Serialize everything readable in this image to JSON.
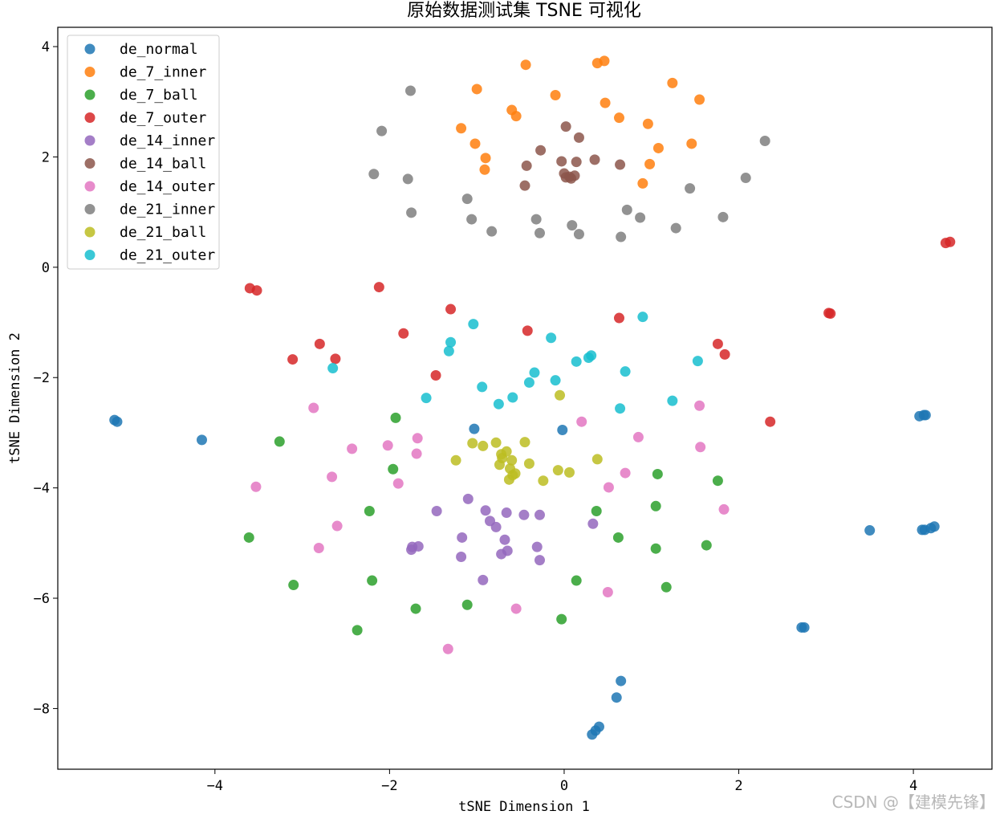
{
  "chart_data": {
    "type": "scatter",
    "title": "原始数据测试集 TSNE 可视化",
    "xlabel": "tSNE Dimension 1",
    "ylabel": "tSNE Dimension 2",
    "xlim": [
      -5.8,
      4.9
    ],
    "ylim": [
      -9.1,
      4.35
    ],
    "xticks": [
      -4,
      -2,
      0,
      2,
      4
    ],
    "yticks": [
      4,
      2,
      0,
      -2,
      -4,
      -6,
      -8
    ],
    "xtick_labels": [
      "−4",
      "−2",
      "0",
      "2",
      "4"
    ],
    "ytick_labels": [
      "4",
      "2",
      "0",
      "−2",
      "−4",
      "−6",
      "−8"
    ],
    "grid": false,
    "legend_position": "top-left",
    "watermark": "CSDN @【建模先锋】",
    "series": [
      {
        "name": "de_normal",
        "color": "#1f77b4",
        "points": [
          [
            -5.15,
            -2.77
          ],
          [
            -5.12,
            -2.8
          ],
          [
            -4.15,
            -3.13
          ],
          [
            -1.03,
            -2.93
          ],
          [
            -0.02,
            -2.95
          ],
          [
            3.5,
            -4.77
          ],
          [
            4.07,
            -2.7
          ],
          [
            4.12,
            -2.68
          ],
          [
            4.14,
            -2.68
          ],
          [
            4.1,
            -4.76
          ],
          [
            4.13,
            -4.76
          ],
          [
            4.2,
            -4.73
          ],
          [
            4.24,
            -4.7
          ],
          [
            2.72,
            -6.53
          ],
          [
            2.75,
            -6.53
          ],
          [
            0.65,
            -7.5
          ],
          [
            0.6,
            -7.8
          ],
          [
            0.4,
            -8.33
          ],
          [
            0.36,
            -8.4
          ],
          [
            0.32,
            -8.47
          ]
        ]
      },
      {
        "name": "de_7_inner",
        "color": "#ff7f0e",
        "points": [
          [
            -0.44,
            3.67
          ],
          [
            0.38,
            3.7
          ],
          [
            0.46,
            3.74
          ],
          [
            1.24,
            3.34
          ],
          [
            1.55,
            3.04
          ],
          [
            -1.0,
            3.23
          ],
          [
            -0.1,
            3.12
          ],
          [
            0.47,
            2.98
          ],
          [
            -0.6,
            2.85
          ],
          [
            -0.55,
            2.74
          ],
          [
            0.63,
            2.71
          ],
          [
            0.96,
            2.6
          ],
          [
            -1.18,
            2.52
          ],
          [
            -1.02,
            2.24
          ],
          [
            -0.9,
            1.98
          ],
          [
            1.46,
            2.24
          ],
          [
            1.08,
            2.16
          ],
          [
            -0.91,
            1.77
          ],
          [
            0.98,
            1.87
          ],
          [
            0.9,
            1.52
          ]
        ]
      },
      {
        "name": "de_7_ball",
        "color": "#2ca02c",
        "points": [
          [
            -1.93,
            -2.73
          ],
          [
            -3.26,
            -3.16
          ],
          [
            -1.96,
            -3.66
          ],
          [
            -2.23,
            -4.42
          ],
          [
            -3.61,
            -4.9
          ],
          [
            -3.1,
            -5.76
          ],
          [
            -2.2,
            -5.68
          ],
          [
            -1.7,
            -6.19
          ],
          [
            -1.11,
            -6.12
          ],
          [
            -2.37,
            -6.58
          ],
          [
            -0.03,
            -6.38
          ],
          [
            0.14,
            -5.68
          ],
          [
            0.37,
            -4.42
          ],
          [
            0.62,
            -4.9
          ],
          [
            1.07,
            -3.75
          ],
          [
            1.05,
            -4.33
          ],
          [
            1.05,
            -5.1
          ],
          [
            1.17,
            -5.8
          ],
          [
            1.76,
            -3.87
          ],
          [
            1.63,
            -5.04
          ]
        ]
      },
      {
        "name": "de_7_outer",
        "color": "#d62728",
        "points": [
          [
            -3.6,
            -0.38
          ],
          [
            -3.52,
            -0.42
          ],
          [
            -2.12,
            -0.36
          ],
          [
            -1.3,
            -0.76
          ],
          [
            -0.42,
            -1.15
          ],
          [
            0.63,
            -0.92
          ],
          [
            3.03,
            -0.83
          ],
          [
            3.05,
            -0.84
          ],
          [
            4.37,
            0.44
          ],
          [
            4.42,
            0.46
          ],
          [
            -3.11,
            -1.67
          ],
          [
            -2.8,
            -1.39
          ],
          [
            -2.62,
            -1.66
          ],
          [
            -1.84,
            -1.2
          ],
          [
            -1.47,
            -1.96
          ],
          [
            1.76,
            -1.39
          ],
          [
            1.84,
            -1.58
          ],
          [
            2.36,
            -2.8
          ]
        ]
      },
      {
        "name": "de_14_inner",
        "color": "#9467bd",
        "points": [
          [
            -1.1,
            -4.2
          ],
          [
            -1.46,
            -4.42
          ],
          [
            -0.9,
            -4.41
          ],
          [
            -0.66,
            -4.45
          ],
          [
            -0.46,
            -4.49
          ],
          [
            -0.28,
            -4.49
          ],
          [
            -0.85,
            -4.6
          ],
          [
            -0.78,
            -4.71
          ],
          [
            0.33,
            -4.65
          ],
          [
            -0.68,
            -4.94
          ],
          [
            -1.17,
            -4.9
          ],
          [
            -0.31,
            -5.07
          ],
          [
            -0.65,
            -5.14
          ],
          [
            -0.72,
            -5.2
          ],
          [
            -1.75,
            -5.12
          ],
          [
            -1.74,
            -5.07
          ],
          [
            -1.67,
            -5.06
          ],
          [
            -1.18,
            -5.25
          ],
          [
            -0.28,
            -5.31
          ],
          [
            -0.93,
            -5.67
          ]
        ]
      },
      {
        "name": "de_14_ball",
        "color": "#8c564b",
        "points": [
          [
            0.02,
            2.55
          ],
          [
            0.17,
            2.35
          ],
          [
            -0.27,
            2.12
          ],
          [
            0.35,
            1.95
          ],
          [
            -0.03,
            1.92
          ],
          [
            0.14,
            1.91
          ],
          [
            0.64,
            1.86
          ],
          [
            -0.43,
            1.84
          ],
          [
            0.0,
            1.7
          ],
          [
            0.06,
            1.64
          ],
          [
            0.12,
            1.66
          ],
          [
            0.02,
            1.63
          ],
          [
            0.08,
            1.61
          ],
          [
            -0.45,
            1.48
          ]
        ]
      },
      {
        "name": "de_14_outer",
        "color": "#e377c2",
        "points": [
          [
            -2.87,
            -2.55
          ],
          [
            -2.02,
            -3.23
          ],
          [
            -1.68,
            -3.1
          ],
          [
            -2.43,
            -3.29
          ],
          [
            -1.69,
            -3.38
          ],
          [
            -2.66,
            -3.8
          ],
          [
            -1.9,
            -3.92
          ],
          [
            -3.53,
            -3.98
          ],
          [
            -2.6,
            -4.69
          ],
          [
            -2.81,
            -5.09
          ],
          [
            0.2,
            -2.8
          ],
          [
            0.85,
            -3.08
          ],
          [
            1.55,
            -2.51
          ],
          [
            1.56,
            -3.26
          ],
          [
            0.7,
            -3.73
          ],
          [
            0.51,
            -3.99
          ],
          [
            1.83,
            -4.39
          ],
          [
            0.5,
            -5.89
          ],
          [
            -0.55,
            -6.19
          ],
          [
            -1.33,
            -6.92
          ]
        ]
      },
      {
        "name": "de_21_inner",
        "color": "#7f7f7f",
        "points": [
          [
            -1.76,
            3.2
          ],
          [
            -2.09,
            2.47
          ],
          [
            2.3,
            2.29
          ],
          [
            -2.18,
            1.69
          ],
          [
            -1.79,
            1.6
          ],
          [
            2.08,
            1.62
          ],
          [
            1.44,
            1.43
          ],
          [
            -1.11,
            1.24
          ],
          [
            -1.75,
            0.99
          ],
          [
            0.72,
            1.04
          ],
          [
            -1.06,
            0.87
          ],
          [
            -0.32,
            0.87
          ],
          [
            0.87,
            0.9
          ],
          [
            1.82,
            0.91
          ],
          [
            0.09,
            0.76
          ],
          [
            1.28,
            0.71
          ],
          [
            -0.83,
            0.65
          ],
          [
            -0.28,
            0.62
          ],
          [
            0.17,
            0.6
          ],
          [
            0.65,
            0.55
          ]
        ]
      },
      {
        "name": "de_21_ball",
        "color": "#bcbd22",
        "points": [
          [
            -0.05,
            -2.32
          ],
          [
            -1.05,
            -3.19
          ],
          [
            -0.93,
            -3.24
          ],
          [
            -0.78,
            -3.18
          ],
          [
            -0.45,
            -3.17
          ],
          [
            -0.72,
            -3.39
          ],
          [
            -0.66,
            -3.34
          ],
          [
            -0.71,
            -3.46
          ],
          [
            -0.6,
            -3.5
          ],
          [
            -0.74,
            -3.58
          ],
          [
            -0.4,
            -3.56
          ],
          [
            -1.24,
            -3.5
          ],
          [
            0.38,
            -3.48
          ],
          [
            -0.62,
            -3.65
          ],
          [
            -0.07,
            -3.68
          ],
          [
            0.06,
            -3.72
          ],
          [
            -0.56,
            -3.74
          ],
          [
            -0.59,
            -3.77
          ],
          [
            -0.63,
            -3.85
          ],
          [
            -0.24,
            -3.87
          ]
        ]
      },
      {
        "name": "de_21_outer",
        "color": "#17becf",
        "points": [
          [
            0.9,
            -0.9
          ],
          [
            -1.04,
            -1.03
          ],
          [
            -0.15,
            -1.28
          ],
          [
            -1.3,
            -1.36
          ],
          [
            -1.32,
            -1.52
          ],
          [
            0.31,
            -1.6
          ],
          [
            0.28,
            -1.64
          ],
          [
            0.14,
            -1.71
          ],
          [
            1.53,
            -1.7
          ],
          [
            -2.65,
            -1.83
          ],
          [
            0.7,
            -1.89
          ],
          [
            -0.34,
            -1.91
          ],
          [
            -0.4,
            -2.09
          ],
          [
            -0.1,
            -2.05
          ],
          [
            -0.94,
            -2.17
          ],
          [
            -0.59,
            -2.36
          ],
          [
            -1.58,
            -2.37
          ],
          [
            1.24,
            -2.42
          ],
          [
            -0.75,
            -2.48
          ],
          [
            0.64,
            -2.56
          ]
        ]
      }
    ]
  }
}
